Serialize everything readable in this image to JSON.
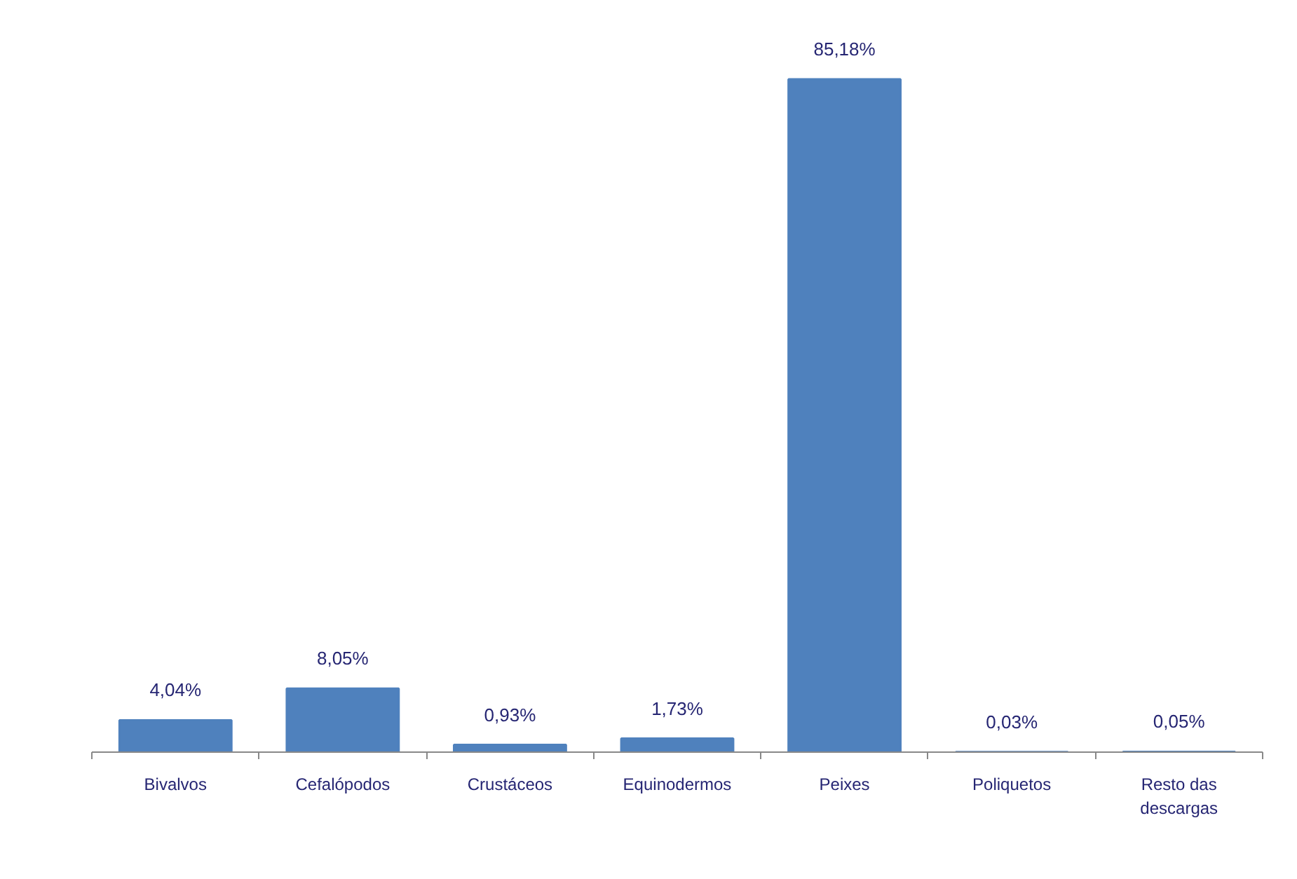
{
  "chart_data": {
    "type": "bar",
    "categories": [
      "Bivalvos",
      "Cefalópodos",
      "Crustáceos",
      "Equinodermos",
      "Peixes",
      "Poliquetos",
      "Resto das descargas"
    ],
    "values": [
      4.04,
      8.05,
      0.93,
      1.73,
      85.18,
      0.03,
      0.05
    ],
    "value_labels": [
      "4,04%",
      "8,05%",
      "0,93%",
      "1,73%",
      "85,18%",
      "0,03%",
      "0,05%"
    ],
    "color": "#4f81bd",
    "tick_labels": "x"
  }
}
